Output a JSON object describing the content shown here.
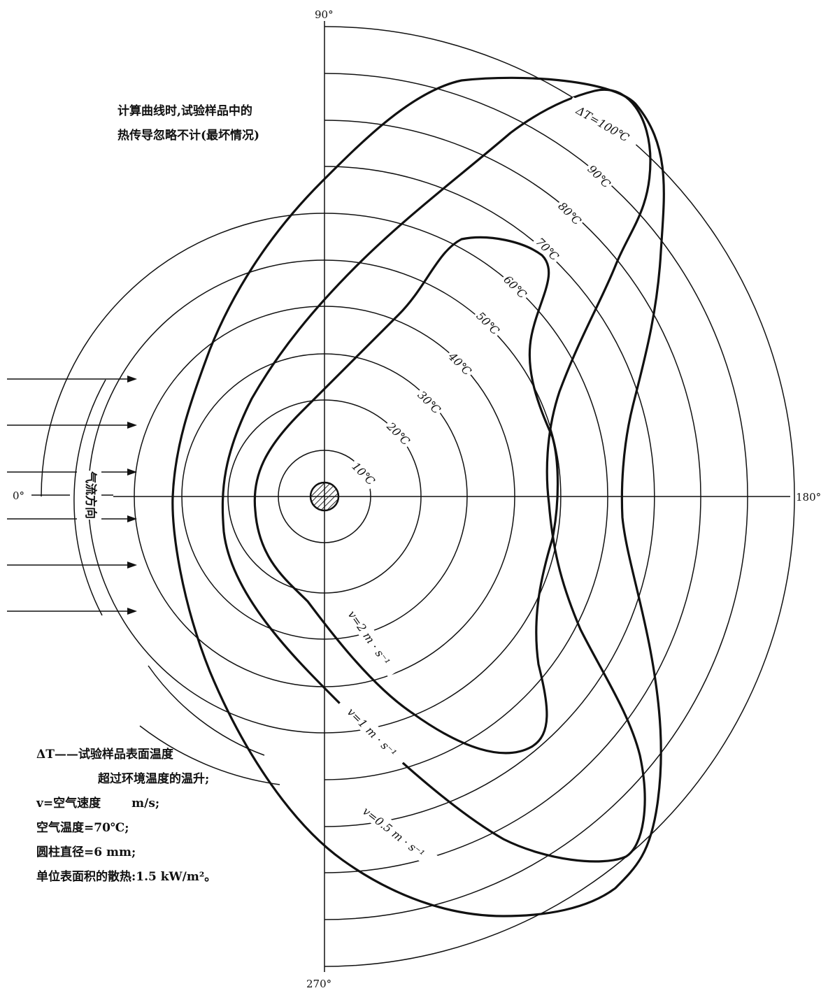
{
  "angles": {
    "a0": "0°",
    "a90": "90°",
    "a180": "180°",
    "a270": "270°"
  },
  "airflow_label": "气流方向",
  "top_note": {
    "line1": "计算曲线时,试验样品中的",
    "line2": "热传导忽略不计(最坏情况)"
  },
  "temperature_labels": [
    "10℃",
    "20℃",
    "30℃",
    "40℃",
    "50℃",
    "60℃",
    "70℃",
    "80℃",
    "90℃",
    "ΔT=100℃"
  ],
  "curve_labels": {
    "v2": "v=2 m · s⁻¹",
    "v1": "v=1 m · s⁻¹",
    "v05": "v=0.5 m · s⁻¹"
  },
  "legend": {
    "dt_term": "ΔT——试验样品表面温度",
    "dt_cont": "超过环境温度的温升;",
    "v_term": "v=空气速度",
    "v_unit": "m/s;",
    "air_temp": "空气温度=70℃;",
    "diameter": "圆柱直径=6 mm;",
    "heat": "单位表面积的散热:1.5 kW/m²。"
  },
  "colors": {
    "line": "#111111",
    "background": "#ffffff"
  }
}
